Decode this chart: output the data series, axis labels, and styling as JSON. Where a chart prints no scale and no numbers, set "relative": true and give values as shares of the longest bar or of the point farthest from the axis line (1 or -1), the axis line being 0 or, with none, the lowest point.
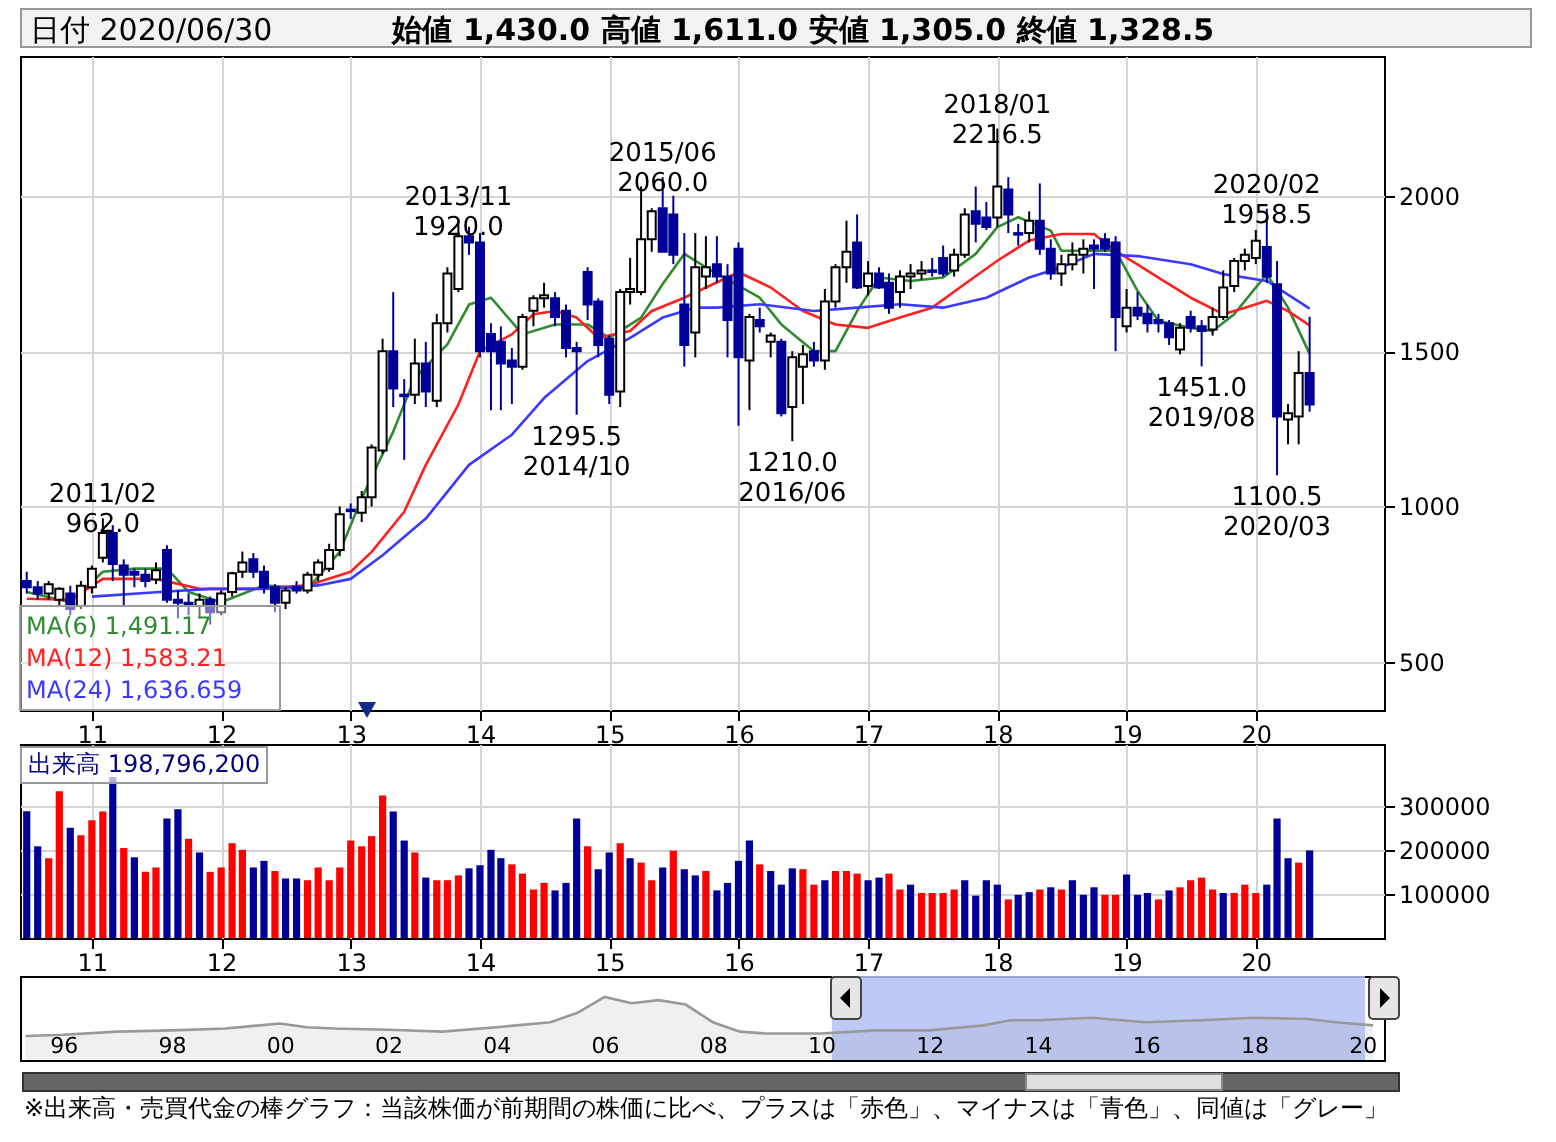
{
  "chart_data": [
    {
      "type": "candlestick",
      "title": "日付 2020/06/30",
      "subtitle": "始値 1,430.0 高値 1,611.0 安値 1,305.0 終値 1,328.5",
      "x": [
        "2010-07",
        "2010-08",
        "2010-09",
        "2010-10",
        "2010-11",
        "2010-12",
        "2011-01",
        "2011-02",
        "2011-03",
        "2011-04",
        "2011-05",
        "2011-06",
        "2011-07",
        "2011-08",
        "2011-09",
        "2011-10",
        "2011-11",
        "2011-12",
        "2012-01",
        "2012-02",
        "2012-03",
        "2012-04",
        "2012-05",
        "2012-06",
        "2012-07",
        "2012-08",
        "2012-09",
        "2012-10",
        "2012-11",
        "2012-12",
        "2013-01",
        "2013-02",
        "2013-03",
        "2013-04",
        "2013-05",
        "2013-06",
        "2013-07",
        "2013-08",
        "2013-09",
        "2013-10",
        "2013-11",
        "2013-12",
        "2014-01",
        "2014-02",
        "2014-03",
        "2014-04",
        "2014-05",
        "2014-06",
        "2014-07",
        "2014-08",
        "2014-09",
        "2014-10",
        "2014-11",
        "2014-12",
        "2015-01",
        "2015-02",
        "2015-03",
        "2015-04",
        "2015-05",
        "2015-06",
        "2015-07",
        "2015-08",
        "2015-09",
        "2015-10",
        "2015-11",
        "2015-12",
        "2016-01",
        "2016-02",
        "2016-03",
        "2016-04",
        "2016-05",
        "2016-06",
        "2016-07",
        "2016-08",
        "2016-09",
        "2016-10",
        "2016-11",
        "2016-12",
        "2017-01",
        "2017-02",
        "2017-03",
        "2017-04",
        "2017-05",
        "2017-06",
        "2017-07",
        "2017-08",
        "2017-09",
        "2017-10",
        "2017-11",
        "2017-12",
        "2018-01",
        "2018-02",
        "2018-03",
        "2018-04",
        "2018-05",
        "2018-06",
        "2018-07",
        "2018-08",
        "2018-09",
        "2018-10",
        "2018-11",
        "2018-12",
        "2019-01",
        "2019-02",
        "2019-03",
        "2019-04",
        "2019-05",
        "2019-06",
        "2019-07",
        "2019-08",
        "2019-09",
        "2019-10",
        "2019-11",
        "2019-12",
        "2020-01",
        "2020-02",
        "2020-03",
        "2020-04",
        "2020-05",
        "2020-06"
      ],
      "ohlc": [
        [
          760,
          790,
          720,
          740
        ],
        [
          740,
          760,
          700,
          720
        ],
        [
          720,
          760,
          700,
          750
        ],
        [
          700,
          740,
          680,
          735
        ],
        [
          720,
          745,
          650,
          670
        ],
        [
          680,
          760,
          670,
          745
        ],
        [
          740,
          810,
          720,
          800
        ],
        [
          835,
          962,
          820,
          915
        ],
        [
          915,
          940,
          760,
          815
        ],
        [
          810,
          830,
          680,
          780
        ],
        [
          790,
          800,
          740,
          780
        ],
        [
          780,
          800,
          740,
          760
        ],
        [
          765,
          820,
          750,
          795
        ],
        [
          860,
          875,
          690,
          700
        ],
        [
          700,
          730,
          640,
          690
        ],
        [
          690,
          720,
          650,
          680
        ],
        [
          680,
          720,
          640,
          700
        ],
        [
          700,
          710,
          620,
          660
        ],
        [
          660,
          730,
          650,
          720
        ],
        [
          725,
          790,
          710,
          785
        ],
        [
          790,
          855,
          770,
          820
        ],
        [
          830,
          850,
          770,
          790
        ],
        [
          790,
          810,
          720,
          740
        ],
        [
          740,
          750,
          660,
          690
        ],
        [
          690,
          740,
          670,
          730
        ],
        [
          740,
          760,
          720,
          730
        ],
        [
          730,
          790,
          720,
          780
        ],
        [
          780,
          830,
          760,
          820
        ],
        [
          800,
          880,
          790,
          860
        ],
        [
          860,
          1000,
          840,
          975
        ],
        [
          990,
          1010,
          960,
          985
        ],
        [
          980,
          1050,
          950,
          1030
        ],
        [
          1030,
          1200,
          1000,
          1190
        ],
        [
          1180,
          1540,
          1170,
          1500
        ],
        [
          1500,
          1690,
          1320,
          1380
        ],
        [
          1360,
          1410,
          1150,
          1355
        ],
        [
          1360,
          1540,
          1330,
          1460
        ],
        [
          1460,
          1530,
          1320,
          1370
        ],
        [
          1340,
          1620,
          1320,
          1590
        ],
        [
          1590,
          1770,
          1560,
          1750
        ],
        [
          1700,
          1920,
          1690,
          1870
        ],
        [
          1870,
          1900,
          1810,
          1850
        ],
        [
          1850,
          1880,
          1480,
          1500
        ],
        [
          1555,
          1590,
          1310,
          1500
        ],
        [
          1530,
          1580,
          1310,
          1460
        ],
        [
          1470,
          1510,
          1330,
          1450
        ],
        [
          1450,
          1620,
          1440,
          1610
        ],
        [
          1630,
          1680,
          1580,
          1670
        ],
        [
          1670,
          1720,
          1640,
          1680
        ],
        [
          1670,
          1690,
          1580,
          1610
        ],
        [
          1630,
          1650,
          1480,
          1510
        ],
        [
          1510,
          1530,
          1295.5,
          1500
        ],
        [
          1755,
          1770,
          1600,
          1650
        ],
        [
          1660,
          1670,
          1480,
          1520
        ],
        [
          1540,
          1550,
          1330,
          1360
        ],
        [
          1370,
          1700,
          1320,
          1690
        ],
        [
          1690,
          1800,
          1650,
          1700
        ],
        [
          1690,
          2030,
          1680,
          1860
        ],
        [
          1860,
          1960,
          1820,
          1950
        ],
        [
          1960,
          2060,
          1820,
          1820
        ],
        [
          1940,
          2000,
          1780,
          1810
        ],
        [
          1650,
          1880,
          1450,
          1520
        ],
        [
          1560,
          1880,
          1480,
          1770
        ],
        [
          1740,
          1870,
          1700,
          1770
        ],
        [
          1780,
          1870,
          1720,
          1740
        ],
        [
          1740,
          1780,
          1480,
          1600
        ],
        [
          1830,
          1850,
          1260,
          1480
        ],
        [
          1470,
          1620,
          1310,
          1610
        ],
        [
          1600,
          1640,
          1560,
          1580
        ],
        [
          1530,
          1560,
          1480,
          1550
        ],
        [
          1530,
          1540,
          1290,
          1300
        ],
        [
          1320,
          1500,
          1210,
          1480
        ],
        [
          1450,
          1520,
          1330,
          1490
        ],
        [
          1500,
          1530,
          1450,
          1470
        ],
        [
          1470,
          1700,
          1440,
          1660
        ],
        [
          1660,
          1780,
          1640,
          1770
        ],
        [
          1770,
          1920,
          1720,
          1820
        ],
        [
          1850,
          1940,
          1700,
          1705
        ],
        [
          1710,
          1790,
          1680,
          1750
        ],
        [
          1750,
          1770,
          1700,
          1705
        ],
        [
          1720,
          1750,
          1620,
          1640
        ],
        [
          1690,
          1760,
          1640,
          1740
        ],
        [
          1740,
          1780,
          1700,
          1750
        ],
        [
          1750,
          1790,
          1730,
          1760
        ],
        [
          1760,
          1800,
          1740,
          1755
        ],
        [
          1800,
          1840,
          1740,
          1750
        ],
        [
          1760,
          1830,
          1740,
          1810
        ],
        [
          1810,
          1960,
          1800,
          1940
        ],
        [
          1950,
          2030,
          1850,
          1910
        ],
        [
          1930,
          1980,
          1890,
          1900
        ],
        [
          1930,
          2216.5,
          1900,
          2030
        ],
        [
          2020,
          2060,
          1880,
          1940
        ],
        [
          1880,
          1910,
          1840,
          1875
        ],
        [
          1880,
          1950,
          1850,
          1920
        ],
        [
          1920,
          2040,
          1810,
          1830
        ],
        [
          1830,
          1860,
          1730,
          1750
        ],
        [
          1750,
          1810,
          1710,
          1780
        ],
        [
          1780,
          1850,
          1760,
          1810
        ],
        [
          1810,
          1860,
          1750,
          1830
        ],
        [
          1840,
          1860,
          1700,
          1830
        ],
        [
          1860,
          1880,
          1820,
          1830
        ],
        [
          1850,
          1870,
          1500,
          1610
        ],
        [
          1580,
          1700,
          1560,
          1640
        ],
        [
          1640,
          1690,
          1600,
          1615
        ],
        [
          1620,
          1650,
          1560,
          1590
        ],
        [
          1600,
          1620,
          1560,
          1590
        ],
        [
          1590,
          1600,
          1520,
          1545
        ],
        [
          1505,
          1590,
          1490,
          1575
        ],
        [
          1610,
          1630,
          1560,
          1575
        ],
        [
          1580,
          1600,
          1451,
          1565
        ],
        [
          1570,
          1640,
          1550,
          1610
        ],
        [
          1610,
          1760,
          1600,
          1705
        ],
        [
          1710,
          1800,
          1690,
          1790
        ],
        [
          1790,
          1830,
          1760,
          1810
        ],
        [
          1800,
          1890,
          1780,
          1855
        ],
        [
          1835,
          1958.5,
          1720,
          1740
        ],
        [
          1715,
          1790,
          1100.5,
          1290
        ],
        [
          1280,
          1330,
          1200,
          1300
        ],
        [
          1290,
          1500,
          1200,
          1430
        ],
        [
          1430,
          1611,
          1305,
          1328.5
        ]
      ],
      "series": [
        {
          "type": "line",
          "name": "MA(6) 1,491.17",
          "color": "#2e8b2e",
          "x": [
            "2010-07",
            "2010-11",
            "2011-02",
            "2011-05",
            "2011-08",
            "2011-10",
            "2012-01",
            "2012-05",
            "2012-09",
            "2012-12",
            "2013-02",
            "2013-05",
            "2013-07",
            "2013-10",
            "2013-12",
            "2014-02",
            "2014-05",
            "2014-08",
            "2014-11",
            "2015-01",
            "2015-04",
            "2015-06",
            "2015-08",
            "2015-10",
            "2016-03",
            "2016-05",
            "2016-08",
            "2016-10",
            "2016-12",
            "2017-02",
            "2017-05",
            "2017-08",
            "2017-11",
            "2018-01",
            "2018-03",
            "2018-06",
            "2018-07",
            "2018-10",
            "2018-12",
            "2019-02",
            "2019-04",
            "2019-07",
            "2019-09",
            "2019-11",
            "2020-01",
            "2020-02",
            "2020-04",
            "2020-06"
          ],
          "values": [
            725,
            692,
            790,
            800,
            800,
            725,
            692,
            746,
            735,
            854,
            1026,
            1241,
            1414,
            1522,
            1650,
            1672,
            1554,
            1586,
            1586,
            1543,
            1608,
            1716,
            1813,
            1770,
            1672,
            1586,
            1500,
            1500,
            1629,
            1737,
            1726,
            1737,
            1813,
            1899,
            1931,
            1888,
            1823,
            1823,
            1823,
            1694,
            1597,
            1575,
            1565,
            1619,
            1705,
            1748,
            1640,
            1491.17
          ]
        },
        {
          "type": "line",
          "name": "MA(12) 1,583.21",
          "color": "#ff2020",
          "x": [
            "2010-07",
            "2010-11",
            "2011-02",
            "2011-07",
            "2011-11",
            "2012-04",
            "2012-09",
            "2013-01",
            "2013-03",
            "2013-06",
            "2013-08",
            "2013-11",
            "2014-01",
            "2014-04",
            "2014-06",
            "2014-08",
            "2014-10",
            "2014-12",
            "2015-03",
            "2015-05",
            "2015-08",
            "2015-10",
            "2016-01",
            "2016-04",
            "2016-07",
            "2016-10",
            "2017-01",
            "2017-04",
            "2017-07",
            "2017-10",
            "2018-01",
            "2018-04",
            "2018-07",
            "2018-10",
            "2018-12",
            "2019-04",
            "2019-07",
            "2019-10",
            "2019-12",
            "2020-02",
            "2020-04",
            "2020-06"
          ],
          "values": [
            703,
            700,
            767,
            767,
            735,
            735,
            746,
            790,
            854,
            983,
            1134,
            1328,
            1500,
            1554,
            1619,
            1629,
            1608,
            1543,
            1565,
            1629,
            1672,
            1705,
            1754,
            1705,
            1629,
            1586,
            1575,
            1608,
            1640,
            1716,
            1791,
            1856,
            1877,
            1877,
            1823,
            1737,
            1672,
            1619,
            1640,
            1662,
            1629,
            1583.21
          ]
        },
        {
          "type": "line",
          "name": "MA(24) 1,636.659",
          "color": "#3a3aff",
          "x": [
            "2011-01",
            "2011-07",
            "2011-12",
            "2012-05",
            "2012-10",
            "2013-01",
            "2013-04",
            "2013-08",
            "2013-12",
            "2014-04",
            "2014-07",
            "2014-11",
            "2015-03",
            "2015-06",
            "2015-09",
            "2015-11",
            "2016-03",
            "2016-08",
            "2016-12",
            "2017-04",
            "2017-08",
            "2017-12",
            "2018-04",
            "2018-07",
            "2018-10",
            "2019-02",
            "2019-07",
            "2019-10",
            "2020-02",
            "2020-06"
          ],
          "values": [
            710,
            724,
            735,
            735,
            746,
            767,
            843,
            961,
            1134,
            1231,
            1349,
            1468,
            1543,
            1608,
            1640,
            1640,
            1651,
            1629,
            1640,
            1651,
            1640,
            1672,
            1737,
            1770,
            1813,
            1806,
            1780,
            1748,
            1726,
            1636.659
          ]
        }
      ],
      "xlim": [
        "2010-06-12",
        "2020-12-28"
      ],
      "xticks": [
        {
          "value": "2011-01",
          "label": "11"
        },
        {
          "value": "2012-01",
          "label": "12"
        },
        {
          "value": "2013-01",
          "label": "13"
        },
        {
          "value": "2014-01",
          "label": "14"
        },
        {
          "value": "2015-01",
          "label": "15"
        },
        {
          "value": "2016-01",
          "label": "16"
        },
        {
          "value": "2017-01",
          "label": "17"
        },
        {
          "value": "2018-01",
          "label": "18"
        },
        {
          "value": "2019-01",
          "label": "19"
        },
        {
          "value": "2020-01",
          "label": "20"
        }
      ],
      "ylim": [
        345,
        2450
      ],
      "yticks": [
        500,
        1000,
        1500,
        2000
      ],
      "grid": true,
      "legend": "bottom left",
      "annotations": [
        {
          "text": "2011/02\n962.0",
          "x": "2011-02",
          "y": 962
        },
        {
          "text": "2013/11\n1920.0",
          "x": "2013-11",
          "y": 1920
        },
        {
          "text": "1295.5\n2014/10",
          "x": "2014-10",
          "y": 1295.5
        },
        {
          "text": "2015/06\n2060.0",
          "x": "2015-06",
          "y": 2060
        },
        {
          "text": "1210.0\n2016/06",
          "x": "2016-06",
          "y": 1210
        },
        {
          "text": "2018/01\n2216.5",
          "x": "2018-01",
          "y": 2216.5
        },
        {
          "text": "1451.0\n2019/08",
          "x": "2019-08",
          "y": 1451
        },
        {
          "text": "2020/02\n1958.5",
          "x": "2020-02",
          "y": 1958.5
        },
        {
          "text": "1100.5\n2020/03",
          "x": "2020-03",
          "y": 1100.5
        }
      ]
    },
    {
      "type": "bar",
      "title": "出来高 198,796,200",
      "x": [
        "2010-07",
        "2010-08",
        "2010-09",
        "2010-10",
        "2010-11",
        "2010-12",
        "2011-01",
        "2011-02",
        "2011-03",
        "2011-04",
        "2011-05",
        "2011-06",
        "2011-07",
        "2011-08",
        "2011-09",
        "2011-10",
        "2011-11",
        "2011-12",
        "2012-01",
        "2012-02",
        "2012-03",
        "2012-04",
        "2012-05",
        "2012-06",
        "2012-07",
        "2012-08",
        "2012-09",
        "2012-10",
        "2012-11",
        "2012-12",
        "2013-01",
        "2013-02",
        "2013-03",
        "2013-04",
        "2013-05",
        "2013-06",
        "2013-07",
        "2013-08",
        "2013-09",
        "2013-10",
        "2013-11",
        "2013-12",
        "2014-01",
        "2014-02",
        "2014-03",
        "2014-04",
        "2014-05",
        "2014-06",
        "2014-07",
        "2014-08",
        "2014-09",
        "2014-10",
        "2014-11",
        "2014-12",
        "2015-01",
        "2015-02",
        "2015-03",
        "2015-04",
        "2015-05",
        "2015-06",
        "2015-07",
        "2015-08",
        "2015-09",
        "2015-10",
        "2015-11",
        "2015-12",
        "2016-01",
        "2016-02",
        "2016-03",
        "2016-04",
        "2016-05",
        "2016-06",
        "2016-07",
        "2016-08",
        "2016-09",
        "2016-10",
        "2016-11",
        "2016-12",
        "2017-01",
        "2017-02",
        "2017-03",
        "2017-04",
        "2017-05",
        "2017-06",
        "2017-07",
        "2017-08",
        "2017-09",
        "2017-10",
        "2017-11",
        "2017-12",
        "2018-01",
        "2018-02",
        "2018-03",
        "2018-04",
        "2018-05",
        "2018-06",
        "2018-07",
        "2018-08",
        "2018-09",
        "2018-10",
        "2018-11",
        "2018-12",
        "2019-01",
        "2019-02",
        "2019-03",
        "2019-04",
        "2019-05",
        "2019-06",
        "2019-07",
        "2019-08",
        "2019-09",
        "2019-10",
        "2019-11",
        "2019-12",
        "2020-01",
        "2020-02",
        "2020-03",
        "2020-04",
        "2020-05",
        "2020-06"
      ],
      "values": [
        287500,
        208000,
        181000,
        333000,
        250000,
        233000,
        267000,
        287000,
        365000,
        204000,
        183000,
        150000,
        160000,
        271000,
        292000,
        225000,
        194000,
        150000,
        160000,
        215000,
        200000,
        160000,
        175000,
        152000,
        135000,
        135000,
        131000,
        160000,
        131000,
        160000,
        221000,
        208000,
        231000,
        323000,
        287000,
        221000,
        194000,
        137000,
        131000,
        131000,
        142000,
        158000,
        165000,
        200000,
        181000,
        167000,
        146000,
        110000,
        125000,
        108000,
        125000,
        271000,
        208000,
        156000,
        194000,
        215000,
        181000,
        171000,
        131000,
        160000,
        198000,
        156000,
        142000,
        152000,
        108000,
        125000,
        175000,
        221000,
        167000,
        152000,
        121000,
        158000,
        156000,
        121000,
        131000,
        152000,
        152000,
        146000,
        131000,
        137000,
        146000,
        110000,
        121000,
        102000,
        102000,
        102000,
        110000,
        131000,
        96000,
        131000,
        121000,
        87500,
        98000,
        104000,
        110000,
        115000,
        110000,
        131000,
        98000,
        115000,
        98000,
        98000,
        144000,
        98000,
        102000,
        87500,
        108000,
        115000,
        131000,
        137000,
        110000,
        102000,
        102000,
        121000,
        102000,
        121000,
        271000,
        181000,
        171000,
        198796
      ],
      "colors": [
        "#000099",
        "#000099",
        "#ff0000",
        "#ff0000",
        "#000099",
        "#ff0000",
        "#ff0000",
        "#ff0000",
        "#000099",
        "#ff0000",
        "#000099",
        "#ff0000",
        "#ff0000",
        "#000099",
        "#000099",
        "#ff0000",
        "#000099",
        "#ff0000",
        "#ff0000",
        "#ff0000",
        "#ff0000",
        "#000099",
        "#000099",
        "#ff0000",
        "#000099",
        "#000099",
        "#ff0000",
        "#ff0000",
        "#ff0000",
        "#ff0000",
        "#ff0000",
        "#ff0000",
        "#ff0000",
        "#ff0000",
        "#000099",
        "#000099",
        "#ff0000",
        "#000099",
        "#ff0000",
        "#ff0000",
        "#ff0000",
        "#000099",
        "#000099",
        "#000099",
        "#000099",
        "#ff0000",
        "#ff0000",
        "#ff0000",
        "#ff0000",
        "#000099",
        "#000099",
        "#000099",
        "#ff0000",
        "#000099",
        "#000099",
        "#ff0000",
        "#000099",
        "#ff0000",
        "#ff0000",
        "#000099",
        "#ff0000",
        "#000099",
        "#000099",
        "#ff0000",
        "#000099",
        "#000099",
        "#000099",
        "#000099",
        "#ff0000",
        "#000099",
        "#000099",
        "#000099",
        "#ff0000",
        "#ff0000",
        "#000099",
        "#ff0000",
        "#ff0000",
        "#ff0000",
        "#000099",
        "#000099",
        "#ff0000",
        "#ff0000",
        "#000099",
        "#ff0000",
        "#ff0000",
        "#ff0000",
        "#ff0000",
        "#000099",
        "#000099",
        "#000099",
        "#000099",
        "#ff0000",
        "#000099",
        "#000099",
        "#ff0000",
        "#000099",
        "#ff0000",
        "#000099",
        "#000099",
        "#000099",
        "#ff0000",
        "#ff0000",
        "#000099",
        "#000099",
        "#000099",
        "#ff0000",
        "#000099",
        "#ff0000",
        "#ff0000",
        "#ff0000",
        "#ff0000",
        "#000099",
        "#ff0000",
        "#ff0000",
        "#ff0000",
        "#000099",
        "#000099",
        "#000099",
        "#ff0000",
        "#000099"
      ],
      "xlim": [
        "2010-06-12",
        "2020-12-28"
      ],
      "xticks": [
        {
          "value": "2011-01",
          "label": "11"
        },
        {
          "value": "2012-01",
          "label": "12"
        },
        {
          "value": "2013-01",
          "label": "13"
        },
        {
          "value": "2014-01",
          "label": "14"
        },
        {
          "value": "2015-01",
          "label": "15"
        },
        {
          "value": "2016-01",
          "label": "16"
        },
        {
          "value": "2017-01",
          "label": "17"
        },
        {
          "value": "2018-01",
          "label": "18"
        },
        {
          "value": "2019-01",
          "label": "19"
        },
        {
          "value": "2020-01",
          "label": "20"
        }
      ],
      "ylim": [
        0,
        440000
      ],
      "yticks": [
        100000,
        200000,
        300000
      ],
      "grid": true
    },
    {
      "type": "area",
      "relative": true,
      "x": [
        1995.3,
        1996,
        1997,
        1998,
        1999,
        2000,
        2000.5,
        2001,
        2002,
        2003,
        2004,
        2005,
        2005.5,
        2006,
        2006.5,
        2007,
        2007.5,
        2008,
        2008.5,
        2009,
        2010,
        2011,
        2012,
        2013,
        2013.5,
        2014,
        2015,
        2016,
        2017,
        2018,
        2019,
        2019.5,
        2020.2
      ],
      "series": [
        {
          "color": "#999999",
          "values": [
            0.38,
            0.4,
            0.45,
            0.47,
            0.5,
            0.58,
            0.52,
            0.5,
            0.48,
            0.45,
            0.52,
            0.6,
            0.75,
            1,
            0.9,
            0.95,
            0.88,
            0.6,
            0.45,
            0.42,
            0.42,
            0.47,
            0.47,
            0.55,
            0.63,
            0.63,
            0.67,
            0.6,
            0.63,
            0.67,
            0.65,
            0.6,
            0.55
          ]
        }
      ],
      "xlim": [
        1995.2,
        2020.4
      ],
      "xticks": [
        {
          "value": 1996,
          "label": "96"
        },
        {
          "value": 1998,
          "label": "98"
        },
        {
          "value": 2000,
          "label": "00"
        },
        {
          "value": 2002,
          "label": "02"
        },
        {
          "value": 2004,
          "label": "04"
        },
        {
          "value": 2006,
          "label": "06"
        },
        {
          "value": 2008,
          "label": "08"
        },
        {
          "value": 2010,
          "label": "10"
        },
        {
          "value": 2012,
          "label": "12"
        },
        {
          "value": 2014,
          "label": "14"
        },
        {
          "value": 2016,
          "label": "16"
        },
        {
          "value": 2018,
          "label": "18"
        },
        {
          "value": 2020,
          "label": "20"
        }
      ],
      "bands": [
        {
          "axis": "x",
          "from": 2010.2,
          "to": 2020.05,
          "color": "#b4c0f4"
        }
      ],
      "annotations": [
        "※出来高・売買代金の棒グラフ：当該株価が前期間の株価に比べ、プラスは「赤色」、マイナスは「青色」、同値は「グレー」"
      ]
    }
  ]
}
